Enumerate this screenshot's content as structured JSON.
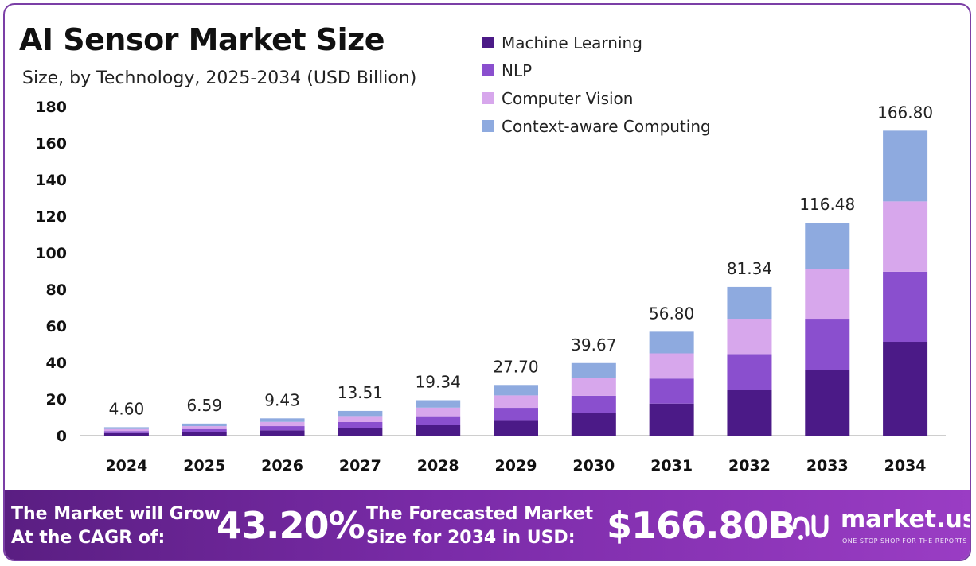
{
  "header": {
    "title": "AI Sensor Market Size",
    "subtitle": "Size, by Technology, 2025-2034 (USD Billion)"
  },
  "legend": [
    {
      "label": "Machine Learning",
      "color": "#4b1a87"
    },
    {
      "label": "NLP",
      "color": "#8a4fce"
    },
    {
      "label": "Computer Vision",
      "color": "#d7a7ec"
    },
    {
      "label": "Context-aware Computing",
      "color": "#8eaadf"
    }
  ],
  "chart_data": {
    "type": "bar",
    "stacked": true,
    "categories": [
      "2024",
      "2025",
      "2026",
      "2027",
      "2028",
      "2029",
      "2030",
      "2031",
      "2032",
      "2033",
      "2034"
    ],
    "series": [
      {
        "name": "Machine Learning",
        "values": [
          1.4,
          2.0,
          2.9,
          4.1,
          5.9,
          8.5,
          12.2,
          17.5,
          25.0,
          35.8,
          51.3
        ]
      },
      {
        "name": "NLP",
        "values": [
          1.1,
          1.6,
          2.3,
          3.3,
          4.7,
          6.7,
          9.6,
          13.7,
          19.6,
          28.1,
          38.3
        ]
      },
      {
        "name": "Computer Vision",
        "values": [
          1.1,
          1.6,
          2.3,
          3.3,
          4.7,
          6.8,
          9.6,
          13.8,
          19.3,
          27.0,
          38.5
        ]
      },
      {
        "name": "Context-aware Computing",
        "values": [
          1.0,
          1.39,
          1.93,
          2.81,
          4.04,
          5.7,
          8.27,
          11.8,
          17.44,
          25.58,
          38.7
        ]
      }
    ],
    "totals": [
      "4.60",
      "6.59",
      "9.43",
      "13.51",
      "19.34",
      "27.70",
      "39.67",
      "56.80",
      "81.34",
      "116.48",
      "166.80"
    ],
    "yticks": [
      "0",
      "20",
      "40",
      "60",
      "80",
      "100",
      "120",
      "140",
      "160",
      "180"
    ],
    "ylim": [
      0,
      180
    ],
    "grid": false,
    "legend_position": "top-center"
  },
  "banner": {
    "cagr_text_1": "The Market will Grow",
    "cagr_text_2": "At the CAGR of:",
    "cagr_value": "43.20%",
    "forecast_text_1": "The Forecasted Market",
    "forecast_text_2": "Size for 2034 in USD:",
    "forecast_value": "$166.80B",
    "logo_name": "market.us",
    "logo_tagline": "ONE STOP SHOP FOR THE REPORTS",
    "logo_icon": "market-us-logo-icon"
  }
}
